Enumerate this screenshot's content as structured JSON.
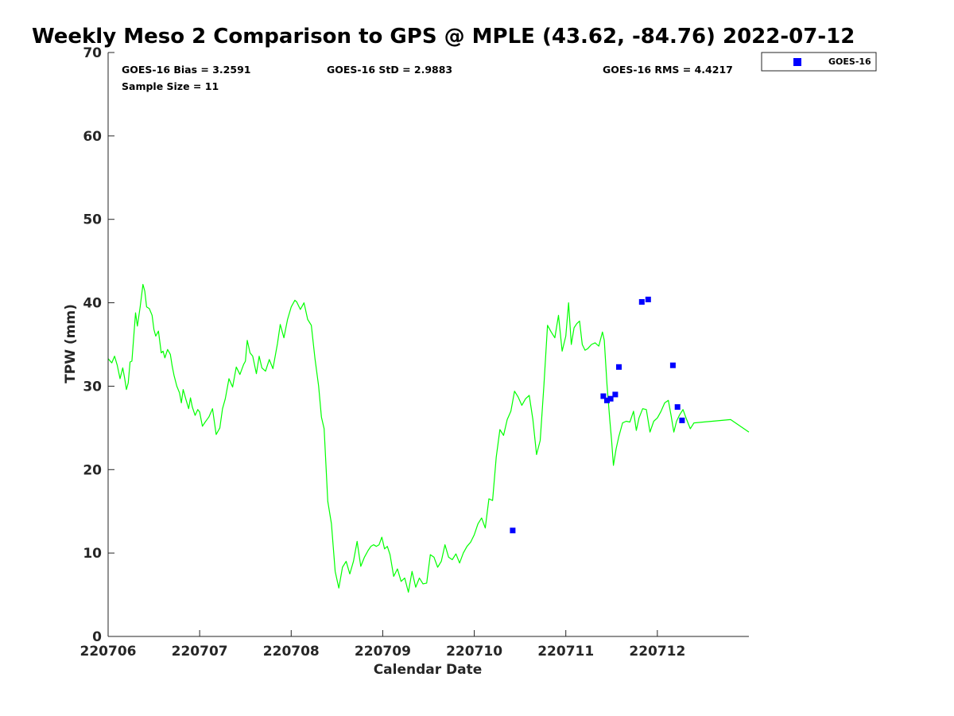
{
  "chart_data": {
    "type": "line",
    "title": "Weekly Meso 2 Comparison to GPS @ MPLE (43.62, -84.76) 2022-07-12",
    "xlabel": "Calendar Date",
    "ylabel": "TPW (mm)",
    "xlim": [
      0,
      7
    ],
    "ylim": [
      0,
      70
    ],
    "xticks": [
      0,
      1,
      2,
      3,
      4,
      5,
      6
    ],
    "xtick_labels": [
      "220706",
      "220707",
      "220708",
      "220709",
      "220710",
      "220711",
      "220712"
    ],
    "yticks": [
      0,
      10,
      20,
      30,
      40,
      50,
      60,
      70
    ],
    "ytick_labels": [
      "0",
      "10",
      "20",
      "30",
      "40",
      "50",
      "60",
      "70"
    ],
    "stats": {
      "bias": "GOES-16 Bias = 3.2591",
      "std": "GOES-16 StD = 2.9883",
      "rms": "GOES-16 RMS = 4.4217",
      "sample": "Sample Size = 11"
    },
    "legend": {
      "label": "GOES-16",
      "placement": "outside-top-right"
    },
    "colors": {
      "gps_line": "#00ff00",
      "goes_points": "#0000ff",
      "axis": "#262626"
    },
    "series": [
      {
        "name": "GPS TPW",
        "style": "line",
        "x": [
          0.0,
          0.04,
          0.07,
          0.1,
          0.13,
          0.16,
          0.18,
          0.2,
          0.22,
          0.24,
          0.26,
          0.3,
          0.32,
          0.35,
          0.38,
          0.4,
          0.42,
          0.45,
          0.48,
          0.5,
          0.52,
          0.55,
          0.58,
          0.6,
          0.62,
          0.65,
          0.68,
          0.7,
          0.72,
          0.75,
          0.78,
          0.8,
          0.82,
          0.85,
          0.88,
          0.9,
          0.92,
          0.95,
          0.98,
          1.0,
          1.03,
          1.06,
          1.1,
          1.14,
          1.18,
          1.22,
          1.25,
          1.28,
          1.32,
          1.36,
          1.4,
          1.44,
          1.48,
          1.5,
          1.52,
          1.55,
          1.58,
          1.62,
          1.65,
          1.68,
          1.72,
          1.76,
          1.8,
          1.85,
          1.88,
          1.92,
          1.96,
          2.0,
          2.04,
          2.06,
          2.1,
          2.14,
          2.18,
          2.22,
          2.26,
          2.3,
          2.33,
          2.36,
          2.4,
          2.44,
          2.48,
          2.52,
          2.56,
          2.6,
          2.64,
          2.68,
          2.72,
          2.76,
          2.8,
          2.84,
          2.87,
          2.9,
          2.93,
          2.96,
          2.99,
          3.02,
          3.05,
          3.08,
          3.12,
          3.16,
          3.2,
          3.24,
          3.28,
          3.32,
          3.36,
          3.4,
          3.44,
          3.48,
          3.52,
          3.56,
          3.6,
          3.64,
          3.68,
          3.72,
          3.76,
          3.8,
          3.84,
          3.88,
          3.92,
          3.96,
          4.0,
          4.04,
          4.08,
          4.12,
          4.16,
          4.2,
          4.24,
          4.28,
          4.32,
          4.36,
          4.4,
          4.44,
          4.48,
          4.52,
          4.56,
          4.6,
          4.64,
          4.68,
          4.72,
          4.76,
          4.8,
          4.84,
          4.88,
          4.92,
          4.96,
          5.0,
          5.03,
          5.06,
          5.09,
          5.12,
          5.15,
          5.18,
          5.21,
          5.24,
          5.28,
          5.32,
          5.36,
          5.4,
          5.42,
          5.45,
          5.48,
          5.5,
          5.52,
          5.55,
          5.58,
          5.62,
          5.66,
          5.7,
          5.74,
          5.77,
          5.8,
          5.84,
          5.88,
          5.92,
          5.96,
          6.0,
          6.04,
          6.08,
          6.12,
          6.15,
          6.18,
          6.21,
          6.24,
          6.28,
          6.32,
          6.36,
          6.4,
          6.6,
          6.8,
          7.0
        ],
        "y": [
          33.3,
          32.8,
          33.6,
          32.5,
          30.9,
          32.2,
          31.0,
          29.6,
          30.4,
          32.9,
          33.0,
          38.8,
          37.2,
          39.5,
          42.2,
          41.4,
          39.5,
          39.3,
          38.5,
          36.8,
          36.0,
          36.6,
          34.0,
          34.2,
          33.4,
          34.4,
          33.8,
          32.4,
          31.3,
          30.0,
          29.2,
          28.0,
          29.6,
          28.4,
          27.3,
          28.6,
          27.5,
          26.5,
          27.2,
          26.9,
          25.2,
          25.7,
          26.3,
          27.3,
          24.2,
          25.0,
          27.3,
          28.5,
          30.9,
          29.9,
          32.3,
          31.4,
          32.6,
          33.0,
          35.5,
          34.0,
          33.6,
          31.5,
          33.6,
          32.2,
          31.8,
          33.2,
          32.1,
          35.1,
          37.4,
          35.8,
          38.0,
          39.5,
          40.3,
          40.1,
          39.2,
          40.0,
          38.0,
          37.3,
          33.3,
          30.0,
          26.3,
          24.9,
          16.2,
          13.5,
          7.8,
          5.8,
          8.3,
          9.0,
          7.5,
          9.0,
          11.4,
          8.4,
          9.5,
          10.3,
          10.8,
          11.0,
          10.8,
          11.0,
          11.9,
          10.5,
          10.8,
          9.8,
          7.2,
          8.1,
          6.6,
          7.0,
          5.3,
          7.8,
          5.9,
          7.0,
          6.3,
          6.4,
          9.8,
          9.5,
          8.3,
          9.0,
          11.0,
          9.5,
          9.2,
          9.9,
          8.8,
          10.0,
          10.8,
          11.3,
          12.2,
          13.5,
          14.2,
          13.0,
          16.5,
          16.3,
          21.5,
          24.8,
          24.1,
          26.0,
          27.0,
          29.4,
          28.7,
          27.7,
          28.5,
          28.9,
          26.0,
          21.8,
          23.5,
          30.0,
          37.3,
          36.5,
          35.8,
          38.5,
          34.2,
          36.0,
          40.0,
          35.0,
          37.0,
          37.5,
          37.8,
          35.0,
          34.3,
          34.5,
          35.0,
          35.2,
          34.8,
          36.5,
          35.5,
          30.2,
          26.0,
          23.5,
          20.5,
          22.5,
          24.0,
          25.6,
          25.8,
          25.7,
          27.0,
          24.7,
          26.2,
          27.3,
          27.2,
          24.5,
          25.8,
          26.2,
          27.0,
          28.0,
          28.3,
          26.5,
          24.5,
          25.8,
          26.5,
          27.2,
          26.0,
          24.9,
          25.6,
          25.8,
          26.0,
          24.5
        ]
      },
      {
        "name": "GOES-16",
        "style": "points",
        "x": [
          4.42,
          5.41,
          5.45,
          5.49,
          5.54,
          5.58,
          5.83,
          5.9,
          6.17,
          6.22,
          6.27
        ],
        "y": [
          12.7,
          28.8,
          28.3,
          28.5,
          29.0,
          32.3,
          40.1,
          40.4,
          32.5,
          27.5,
          25.9
        ]
      }
    ]
  }
}
